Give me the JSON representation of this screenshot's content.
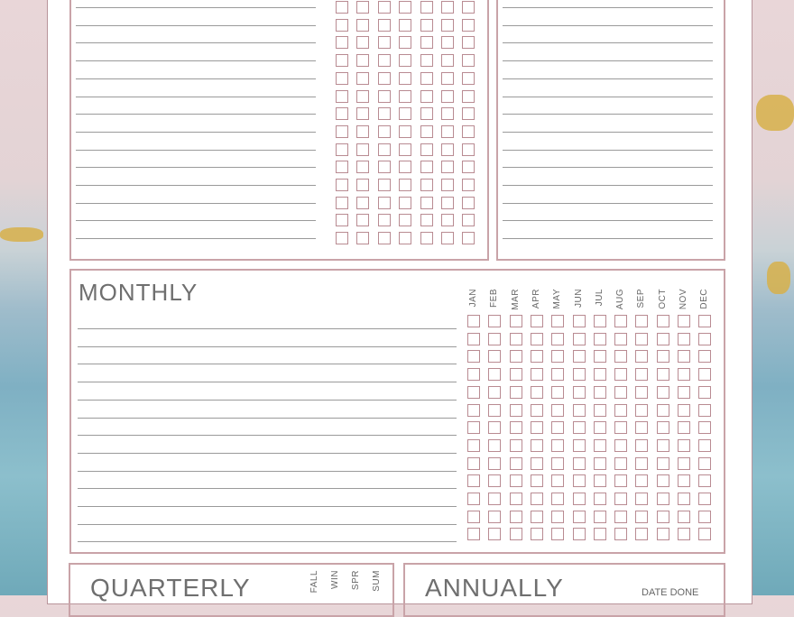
{
  "colors": {
    "border": "#c9a3a8",
    "checkbox": "#b98b92",
    "line": "#9a9a9a"
  },
  "monthly": {
    "title": "MONTHLY",
    "months": [
      "JAN",
      "FEB",
      "MAR",
      "APR",
      "MAY",
      "JUN",
      "JUL",
      "AUG",
      "SEP",
      "OCT",
      "NOV",
      "DEC"
    ]
  },
  "quarterly": {
    "title": "QUARTERLY",
    "seasons": [
      "FALL",
      "WIN",
      "SPR",
      "SUM"
    ]
  },
  "annually": {
    "title": "ANNUALLY",
    "date_done": "DATE DONE"
  }
}
